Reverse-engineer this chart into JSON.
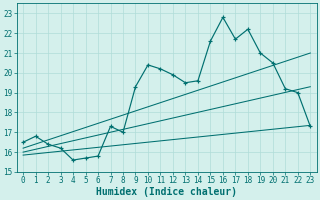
{
  "xlabel": "Humidex (Indice chaleur)",
  "bg_color": "#d4f0ec",
  "line_color": "#007070",
  "grid_color": "#b0ddd8",
  "xlim": [
    -0.5,
    23.5
  ],
  "ylim": [
    15,
    23.5
  ],
  "yticks": [
    15,
    16,
    17,
    18,
    19,
    20,
    21,
    22,
    23
  ],
  "xticks": [
    0,
    1,
    2,
    3,
    4,
    5,
    6,
    7,
    8,
    9,
    10,
    11,
    12,
    13,
    14,
    15,
    16,
    17,
    18,
    19,
    20,
    21,
    22,
    23
  ],
  "main_x": [
    0,
    1,
    2,
    3,
    4,
    5,
    6,
    7,
    8,
    9,
    10,
    11,
    12,
    13,
    14,
    15,
    16,
    17,
    18,
    19,
    20,
    21,
    22,
    23
  ],
  "main_y": [
    16.5,
    16.8,
    16.4,
    16.2,
    15.6,
    15.7,
    15.8,
    17.3,
    17.0,
    19.3,
    20.4,
    20.2,
    19.9,
    19.5,
    19.6,
    21.6,
    22.8,
    21.7,
    22.2,
    21.0,
    20.5,
    19.2,
    19.0,
    17.3
  ],
  "trend1_x": [
    0,
    23
  ],
  "trend1_y": [
    16.2,
    21.0
  ],
  "trend2_x": [
    0,
    23
  ],
  "trend2_y": [
    16.0,
    19.3
  ],
  "trend3_x": [
    0,
    23
  ],
  "trend3_y": [
    15.85,
    17.35
  ],
  "xlabel_fontsize": 7,
  "tick_fontsize": 5.5
}
